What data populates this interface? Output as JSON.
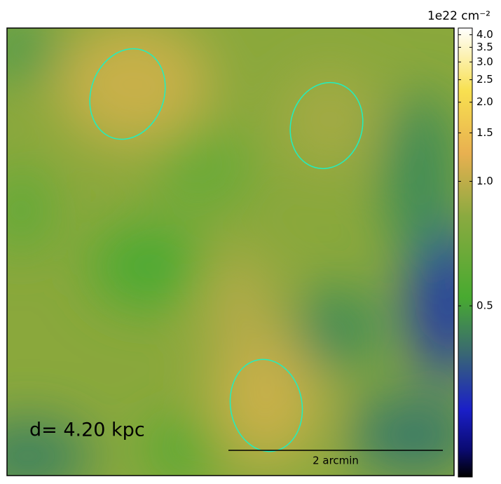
{
  "chart_data": {
    "type": "image",
    "annotation": "d= 4.20 kpc",
    "scalebar_label": "2 arcmin",
    "colorbar_label": "1e22 cm⁻²",
    "cbar_scale": "log",
    "cbar_offset": 0.35,
    "clim": [
      0.37,
      4.3
    ],
    "cticks": [
      {
        "value": 4,
        "label": "4.0"
      },
      3.5,
      {
        "value": 3,
        "label": "3.0"
      },
      2.5,
      {
        "value": 2,
        "label": "2.0"
      },
      1.5,
      {
        "value": 1,
        "label": "1.0"
      },
      0.5
    ]
  }
}
